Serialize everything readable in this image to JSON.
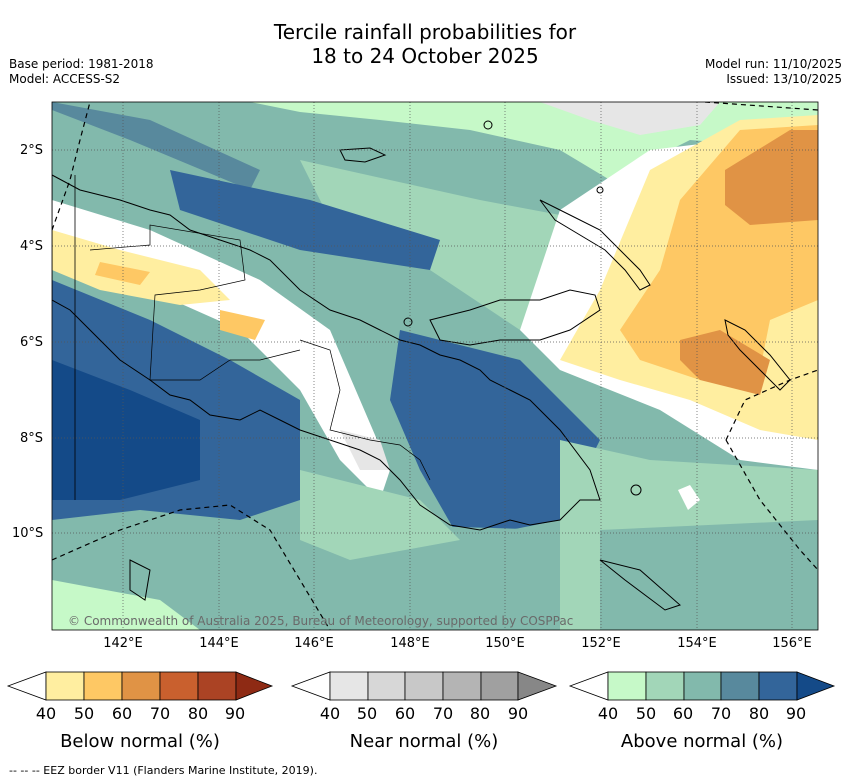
{
  "title": {
    "line1": "Tercile rainfall probabilities for",
    "line2": "18 to 24 October 2025"
  },
  "meta": {
    "base_period": "Base period: 1981-2018",
    "model": "Model: ACCESS-S2",
    "model_run": "Model run: 11/10/2025",
    "issued": "Issued: 13/10/2025"
  },
  "map": {
    "latitude_labels": [
      "2°S",
      "4°S",
      "6°S",
      "8°S",
      "10°S"
    ],
    "longitude_labels": [
      "142°E",
      "144°E",
      "146°E",
      "148°E",
      "150°E",
      "152°E",
      "154°E",
      "156°E"
    ],
    "copyright": "© Commonwealth of Australia 2025, Bureau of Meteorology, supported by COSPPac"
  },
  "colorbars": [
    {
      "title": "Below normal (%)",
      "ticks": [
        "40",
        "50",
        "60",
        "70",
        "80",
        "90"
      ],
      "colors": [
        "#ffeea0",
        "#fec864",
        "#e09345",
        "#c9602e",
        "#ab4324",
        "#8e2a14"
      ]
    },
    {
      "title": "Near normal (%)",
      "ticks": [
        "40",
        "50",
        "60",
        "70",
        "80",
        "90"
      ],
      "colors": [
        "#e6e6e6",
        "#d7d7d7",
        "#c8c8c8",
        "#b4b4b4",
        "#a0a0a0",
        "#878787"
      ]
    },
    {
      "title": "Above normal (%)",
      "ticks": [
        "40",
        "50",
        "60",
        "70",
        "80",
        "90"
      ],
      "colors": [
        "#c6f9c8",
        "#a2d6b8",
        "#82b9ac",
        "#58899d",
        "#33659a",
        "#144a88"
      ]
    }
  ],
  "footer": "--  --  -- EEZ border V11 (Flanders Marine Institute, 2019)."
}
